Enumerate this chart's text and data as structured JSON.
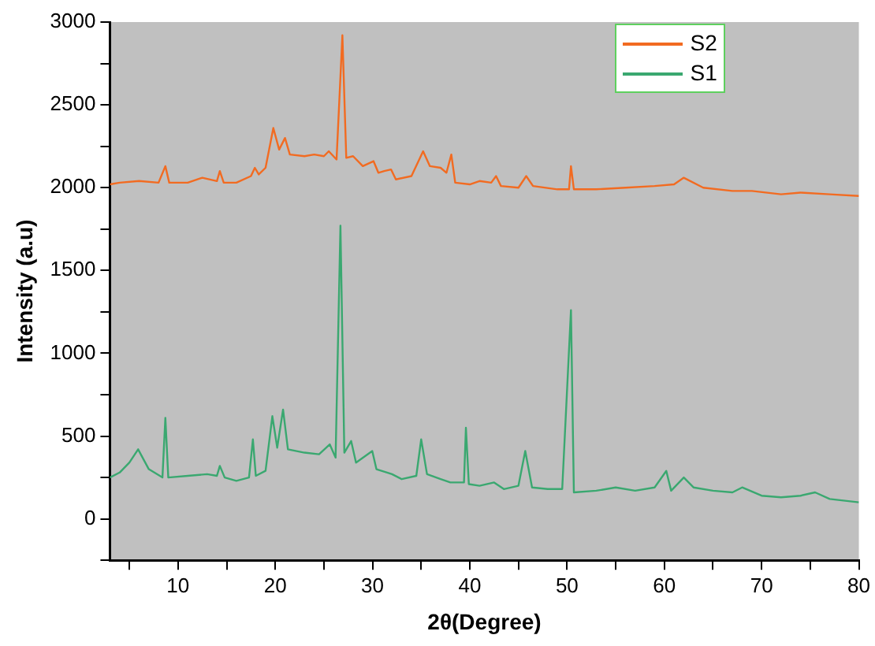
{
  "chart_data": {
    "type": "line",
    "xlabel": "2θ(Degree)",
    "ylabel": "Intensity (a.u)",
    "xlim": [
      3,
      80
    ],
    "ylim": [
      -250,
      3000
    ],
    "xticks": [
      {
        "value": 5,
        "label": null
      },
      10,
      {
        "value": 15,
        "label": null
      },
      20,
      {
        "value": 25,
        "label": null
      },
      30,
      {
        "value": 35,
        "label": null
      },
      40,
      {
        "value": 45,
        "label": null
      },
      50,
      {
        "value": 55,
        "label": null
      },
      60,
      {
        "value": 65,
        "label": null
      },
      70,
      {
        "value": 75,
        "label": null
      },
      80
    ],
    "yticks": [
      {
        "value": -250,
        "label": null
      },
      0,
      {
        "value": 250,
        "label": null
      },
      500,
      {
        "value": 750,
        "label": null
      },
      1000,
      {
        "value": 1250,
        "label": null
      },
      1500,
      {
        "value": 1750,
        "label": null
      },
      2000,
      {
        "value": 2250,
        "label": null
      },
      2500,
      {
        "value": 2750,
        "label": null
      },
      3000
    ],
    "grid": false,
    "legend": "top right",
    "marker": "none",
    "line_style": "solid",
    "series": [
      {
        "name": "S2",
        "color": "#f26b21",
        "x": [
          3,
          4,
          6,
          8,
          8.7,
          9.1,
          11,
          12.5,
          14,
          14.3,
          14.7,
          16,
          17.5,
          17.9,
          18.3,
          19,
          19.8,
          20.4,
          21,
          21.5,
          23,
          24,
          25,
          25.5,
          26.3,
          26.9,
          27.3,
          28,
          29,
          30.1,
          30.6,
          31.2,
          31.9,
          32.4,
          34,
          35.2,
          35.9,
          37,
          37.6,
          38.1,
          38.5,
          40,
          41,
          42.2,
          42.7,
          43.2,
          45,
          45.8,
          46.5,
          49,
          50.2,
          50.4,
          50.7,
          53,
          56,
          59,
          61,
          62,
          64,
          67,
          69,
          72,
          74,
          77,
          80
        ],
        "values": [
          2020,
          2030,
          2040,
          2030,
          2130,
          2030,
          2030,
          2060,
          2040,
          2100,
          2030,
          2030,
          2070,
          2120,
          2080,
          2120,
          2360,
          2230,
          2300,
          2200,
          2190,
          2200,
          2190,
          2220,
          2170,
          2920,
          2180,
          2190,
          2130,
          2160,
          2090,
          2100,
          2110,
          2050,
          2070,
          2220,
          2130,
          2120,
          2090,
          2200,
          2030,
          2020,
          2040,
          2030,
          2070,
          2010,
          2000,
          2070,
          2010,
          1990,
          1990,
          2130,
          1990,
          1990,
          2000,
          2010,
          2020,
          2060,
          2000,
          1980,
          1980,
          1960,
          1970,
          1960,
          1950
        ]
      },
      {
        "name": "S1",
        "color": "#3aa870",
        "x": [
          3,
          4,
          5,
          5.9,
          7,
          8.4,
          8.7,
          9,
          11,
          13,
          14,
          14.3,
          14.8,
          16,
          17.3,
          17.7,
          18,
          19,
          19.7,
          20.2,
          20.8,
          21.3,
          23,
          24.5,
          25.6,
          26.2,
          26.7,
          27.1,
          27.8,
          28.3,
          29.97,
          30.4,
          31.5,
          32,
          33,
          34.5,
          35,
          35.6,
          37,
          38,
          39.4,
          39.6,
          39.9,
          41,
          42.5,
          43.5,
          45,
          45.7,
          46.4,
          48,
          49.5,
          50.4,
          50.7,
          53,
          55,
          57,
          59,
          60.2,
          60.7,
          62,
          63,
          65,
          67,
          68,
          70,
          72,
          74,
          75.5,
          77,
          80
        ],
        "values": [
          250,
          280,
          340,
          420,
          300,
          250,
          610,
          250,
          260,
          270,
          260,
          320,
          250,
          230,
          250,
          480,
          260,
          290,
          620,
          430,
          660,
          420,
          400,
          390,
          450,
          370,
          1770,
          400,
          470,
          340,
          410,
          300,
          280,
          270,
          240,
          260,
          480,
          270,
          240,
          220,
          220,
          550,
          210,
          200,
          220,
          180,
          200,
          410,
          190,
          180,
          180,
          1260,
          160,
          170,
          190,
          170,
          190,
          290,
          170,
          250,
          190,
          170,
          160,
          190,
          140,
          130,
          140,
          160,
          120,
          100
        ]
      }
    ]
  }
}
